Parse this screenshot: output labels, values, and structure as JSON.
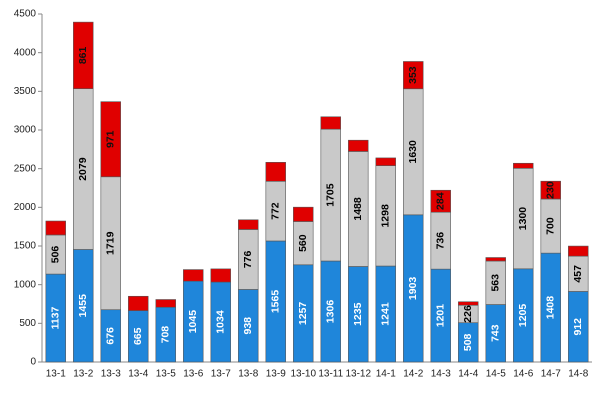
{
  "chart_data": {
    "type": "stacked_bar",
    "categories": [
      "13-1",
      "13-2",
      "13-3",
      "13-4",
      "13-5",
      "13-6",
      "13-7",
      "13-8",
      "13-9",
      "13-10",
      "13-11",
      "13-12",
      "14-1",
      "14-2",
      "14-3",
      "14-4",
      "14-5",
      "14-6",
      "14-7",
      "14-8"
    ],
    "series": [
      {
        "color": "#1f86da",
        "label_color": "#ffffff",
        "values": [
          1137,
          1455,
          676,
          665,
          708,
          1045,
          1034,
          938,
          1565,
          1257,
          1306,
          1235,
          1241,
          1903,
          1201,
          508,
          743,
          1205,
          1408,
          912
        ]
      },
      {
        "color": "#c9c9c9",
        "label_color": "#000000",
        "values": [
          506,
          2079,
          1719,
          null,
          null,
          null,
          null,
          776,
          772,
          560,
          1705,
          1488,
          1298,
          1630,
          736,
          226,
          563,
          1300,
          700,
          457
        ]
      },
      {
        "color": "#e00000",
        "label_color": "#111111",
        "values": [
          180,
          861,
          971,
          185,
          100,
          150,
          170,
          125,
          245,
          185,
          160,
          145,
          100,
          353,
          284,
          45,
          45,
          65,
          230,
          130
        ],
        "value_labels": [
          null,
          "861",
          "971",
          null,
          null,
          null,
          null,
          null,
          null,
          null,
          null,
          null,
          null,
          "353",
          "284",
          null,
          null,
          null,
          "230",
          null
        ]
      }
    ],
    "ylim": [
      0,
      4500
    ],
    "yticks": [
      0,
      500,
      1000,
      1500,
      2000,
      2500,
      3000,
      3500,
      4000,
      4500
    ]
  }
}
